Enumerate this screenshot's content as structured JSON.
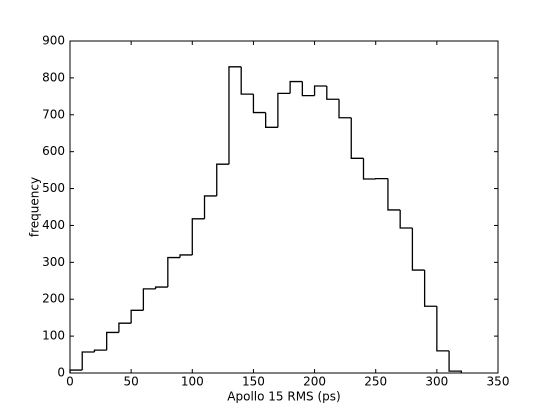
{
  "chart_data": {
    "type": "histogram",
    "x_label": "Apollo 15 RMS (ps)",
    "y_label": "frequency",
    "bins": [
      0,
      10,
      20,
      30,
      40,
      50,
      60,
      70,
      80,
      90,
      100,
      110,
      120,
      130,
      140,
      150,
      160,
      170,
      180,
      190,
      200,
      210,
      220,
      230,
      240,
      250,
      260,
      270,
      280,
      290,
      300,
      310,
      320
    ],
    "values": [
      8,
      57,
      62,
      110,
      135,
      170,
      228,
      233,
      313,
      320,
      418,
      480,
      566,
      830,
      756,
      706,
      666,
      758,
      790,
      752,
      778,
      742,
      692,
      582,
      526,
      527,
      442,
      393,
      279,
      181,
      60,
      5
    ],
    "color": "#000000",
    "xlim": [
      0,
      350
    ],
    "xticks": [
      0,
      50,
      100,
      150,
      200,
      250,
      300,
      350
    ],
    "ylim": [
      0,
      900
    ],
    "yticks": [
      0,
      100,
      200,
      300,
      400,
      500,
      600,
      700,
      800,
      900
    ]
  }
}
